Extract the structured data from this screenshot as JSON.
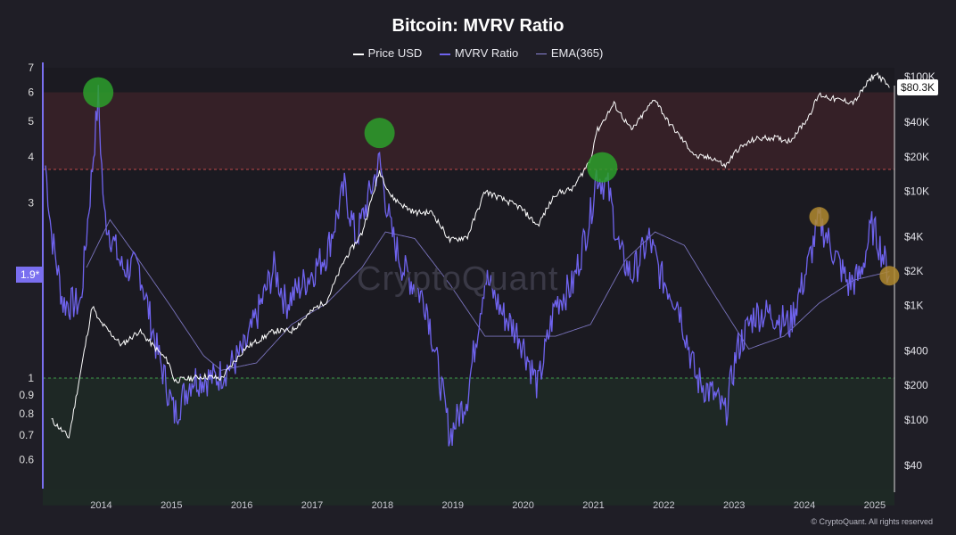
{
  "chart_data": {
    "type": "line",
    "title": "Bitcoin: MVRV Ratio",
    "legend_position": "top-center",
    "series": [
      {
        "name": "Price USD",
        "color": "#ffffff",
        "axis": "right",
        "x": [
          "2013-04",
          "2013-07",
          "2013-11",
          "2013-12",
          "2014-04",
          "2014-07",
          "2014-12",
          "2015-01",
          "2015-06",
          "2015-09",
          "2016-01",
          "2016-06",
          "2016-09",
          "2017-01",
          "2017-03",
          "2017-06",
          "2017-09",
          "2017-12",
          "2018-02",
          "2018-04",
          "2018-06",
          "2018-09",
          "2018-12",
          "2019-03",
          "2019-06",
          "2019-09",
          "2019-12",
          "2020-03",
          "2020-06",
          "2020-09",
          "2020-12",
          "2021-01",
          "2021-04",
          "2021-07",
          "2021-11",
          "2022-01",
          "2022-06",
          "2022-09",
          "2022-11",
          "2023-01",
          "2023-04",
          "2023-07",
          "2023-10",
          "2024-01",
          "2024-03",
          "2024-06",
          "2024-09",
          "2024-12",
          "2025-01",
          "2025-03"
        ],
        "values": [
          100,
          70,
          1000,
          750,
          450,
          600,
          320,
          220,
          240,
          230,
          420,
          600,
          600,
          950,
          1100,
          2500,
          4300,
          15000,
          9000,
          7500,
          6500,
          6500,
          3700,
          4000,
          10000,
          8500,
          7200,
          5000,
          9500,
          10500,
          19000,
          33000,
          58000,
          34000,
          65000,
          42000,
          20000,
          19500,
          16500,
          23000,
          28500,
          29500,
          27500,
          43000,
          70000,
          63000,
          60000,
          100000,
          105000,
          80300
        ]
      },
      {
        "name": "MVRV Ratio",
        "color": "#6f63ee",
        "axis": "left",
        "x": [
          "2013-03",
          "2013-04",
          "2013-06",
          "2013-09",
          "2013-12",
          "2014-01",
          "2014-04",
          "2014-07",
          "2014-10",
          "2015-01",
          "2015-04",
          "2015-08",
          "2015-11",
          "2016-01",
          "2016-06",
          "2016-08",
          "2016-12",
          "2017-03",
          "2017-06",
          "2017-08",
          "2017-12",
          "2018-02",
          "2018-04",
          "2018-08",
          "2018-12",
          "2019-03",
          "2019-06",
          "2019-09",
          "2019-12",
          "2020-03",
          "2020-06",
          "2020-09",
          "2020-12",
          "2021-01",
          "2021-03",
          "2021-05",
          "2021-07",
          "2021-10",
          "2021-12",
          "2022-03",
          "2022-06",
          "2022-09",
          "2022-11",
          "2023-01",
          "2023-04",
          "2023-07",
          "2023-10",
          "2024-01",
          "2024-03",
          "2024-05",
          "2024-08",
          "2024-10",
          "2024-12",
          "2025-01",
          "2025-03"
        ],
        "values": [
          3.8,
          2.5,
          1.6,
          1.6,
          5.8,
          2.8,
          2.0,
          2.0,
          1.2,
          0.8,
          1.0,
          1.0,
          1.1,
          1.2,
          2.0,
          1.6,
          1.9,
          2.2,
          3.3,
          2.4,
          3.9,
          2.5,
          2.0,
          1.6,
          0.7,
          0.9,
          1.9,
          1.5,
          1.3,
          0.95,
          1.6,
          1.8,
          2.8,
          3.6,
          3.3,
          2.2,
          1.9,
          2.4,
          1.9,
          1.6,
          1.0,
          0.9,
          0.8,
          1.2,
          1.5,
          1.5,
          1.4,
          2.0,
          2.7,
          2.3,
          1.8,
          1.9,
          2.6,
          2.4,
          1.9
        ]
      },
      {
        "name": "EMA(365)",
        "color": "#8b84d8",
        "axis": "left",
        "x": [
          "2013-10",
          "2014-02",
          "2014-06",
          "2014-12",
          "2015-06",
          "2015-09",
          "2016-03",
          "2016-09",
          "2017-03",
          "2017-09",
          "2018-01",
          "2018-06",
          "2018-12",
          "2019-06",
          "2019-12",
          "2020-06",
          "2020-12",
          "2021-06",
          "2021-11",
          "2022-04",
          "2022-09",
          "2023-03",
          "2023-09",
          "2024-03",
          "2024-09",
          "2025-03"
        ],
        "values": [
          2.0,
          2.7,
          2.2,
          1.6,
          1.15,
          1.05,
          1.1,
          1.4,
          1.6,
          2.0,
          2.5,
          2.4,
          1.8,
          1.3,
          1.3,
          1.3,
          1.4,
          2.1,
          2.5,
          2.3,
          1.7,
          1.2,
          1.3,
          1.6,
          1.85,
          1.95
        ]
      }
    ],
    "x_ticks": [
      "2014",
      "2015",
      "2016",
      "2017",
      "2018",
      "2019",
      "2020",
      "2021",
      "2022",
      "2023",
      "2024",
      "2025"
    ],
    "y_left_ticks": [
      "0.6",
      "0.7",
      "0.8",
      "0.9",
      "1",
      "3",
      "4",
      "5",
      "6",
      "7"
    ],
    "y_left_tick_values": [
      0.6,
      0.7,
      0.8,
      0.9,
      1,
      3,
      4,
      5,
      6,
      7
    ],
    "y_right_ticks": [
      "$40",
      "$100",
      "$200",
      "$400",
      "$1K",
      "$2K",
      "$4K",
      "$10K",
      "$20K",
      "$40K",
      "$100K"
    ],
    "y_right_tick_values": [
      40,
      100,
      200,
      400,
      1000,
      2000,
      4000,
      10000,
      20000,
      40000,
      100000
    ],
    "ylim_left": [
      0.5,
      7
    ],
    "ylim_right": [
      25,
      120000
    ],
    "y_scale": "log",
    "zones": [
      {
        "from": 3.7,
        "to": 6.0,
        "color": "#3a2228",
        "border": "#c04a4a"
      },
      {
        "from": 0.45,
        "to": 1.0,
        "color": "#1f2c26",
        "border": "#3f9a4a"
      }
    ],
    "markers": [
      {
        "date": "2013-12",
        "value": 6.0,
        "color": "#2ca02c"
      },
      {
        "date": "2017-12",
        "value": 4.65,
        "color": "#2ca02c"
      },
      {
        "date": "2021-02",
        "value": 3.75,
        "color": "#2ca02c"
      },
      {
        "date": "2024-03",
        "value": 2.75,
        "color": "#b08a2e"
      },
      {
        "date": "2025-03",
        "value": 1.9,
        "color": "#b08a2e"
      }
    ],
    "last_price_label": "$80.3K",
    "current_mvrv_label": "1.9*",
    "grid": false
  },
  "credit": "© CryptoQuant. All rights reserved",
  "watermark": "CryptoQuant"
}
